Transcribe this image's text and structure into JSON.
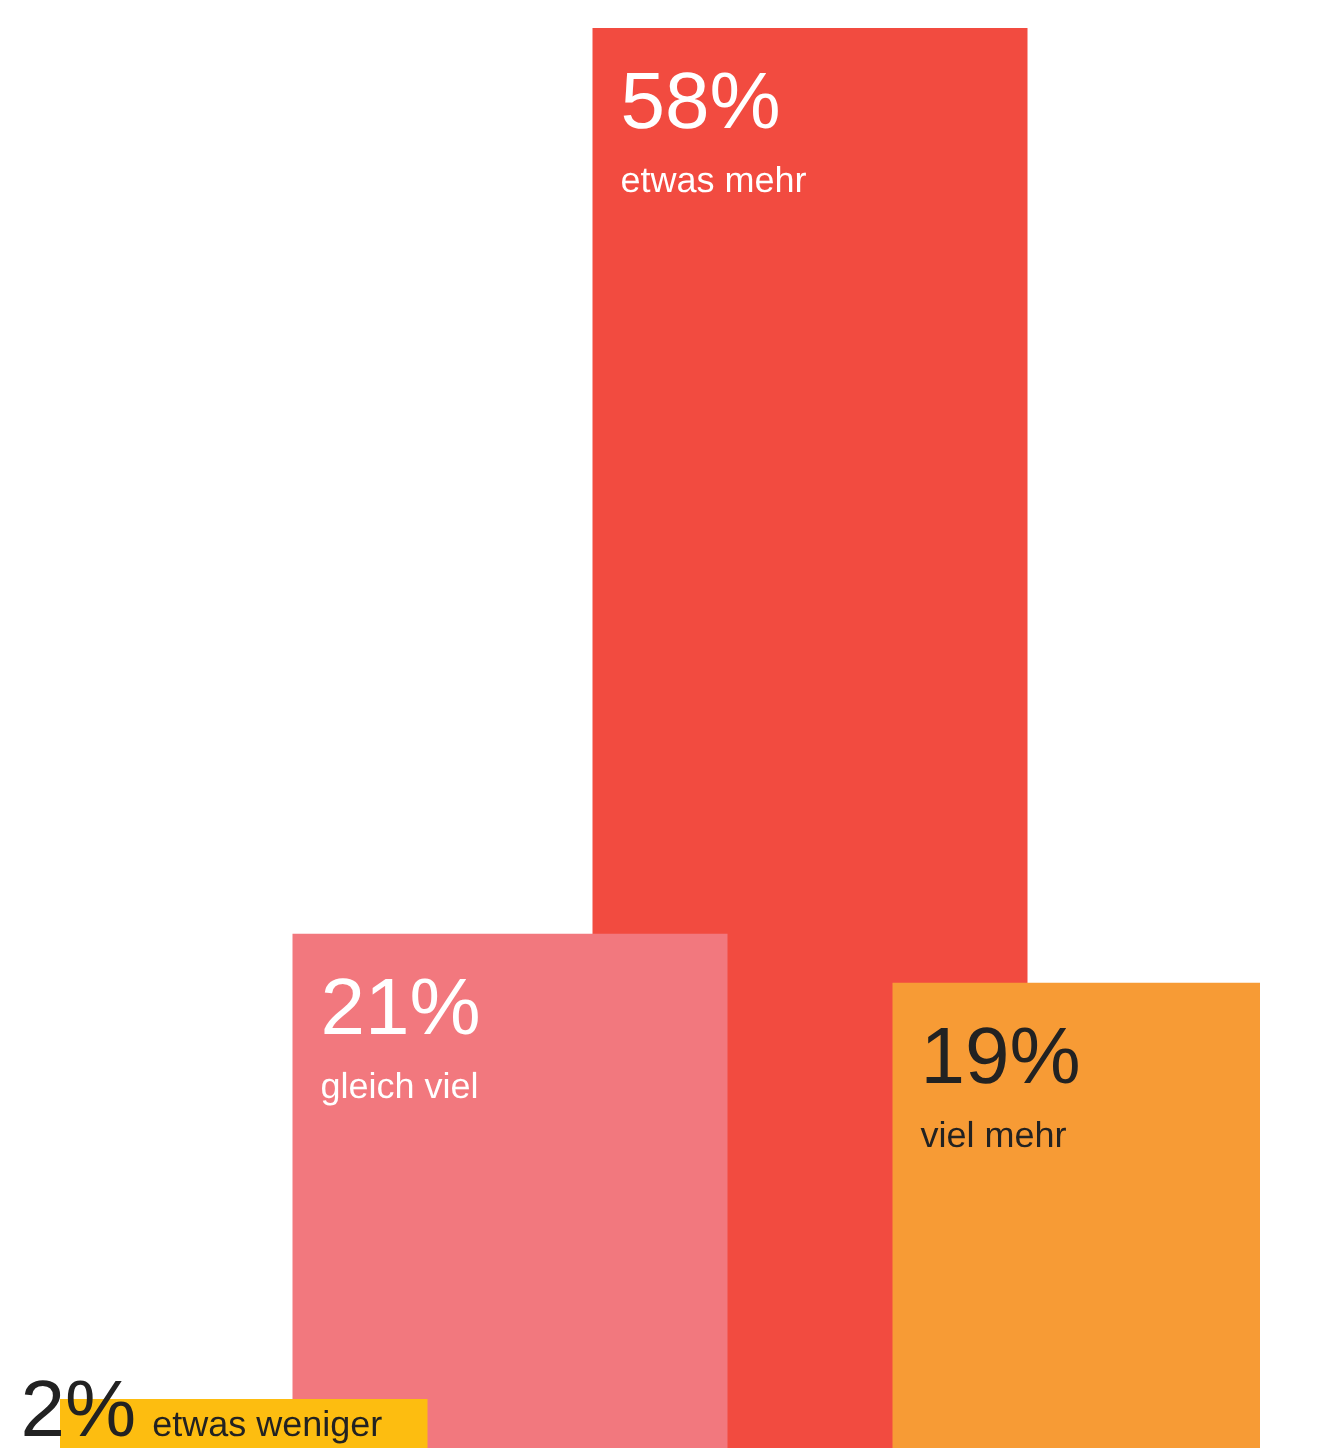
{
  "chart_data": {
    "type": "bar",
    "categories": [
      "etwas weniger",
      "gleich viel",
      "etwas mehr",
      "viel mehr"
    ],
    "values": [
      2,
      21,
      58,
      19
    ],
    "colors": [
      "#fdbd10",
      "#f2787e",
      "#f24b40",
      "#f79b35"
    ],
    "value_labels": [
      "2%",
      "21%",
      "58%",
      "19%"
    ],
    "relative": false,
    "tick_labels": false,
    "legend": false
  }
}
